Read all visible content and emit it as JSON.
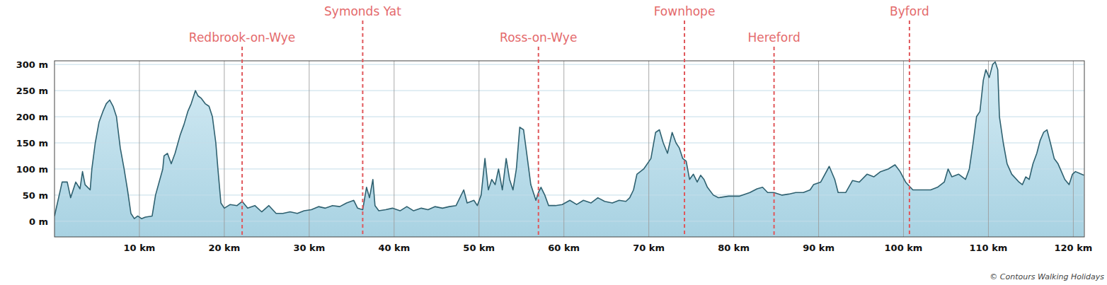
{
  "chart_data": {
    "type": "area",
    "color": "#2f6170",
    "grid": true,
    "xlim": [
      0,
      121.3
    ],
    "ylim": [
      -30,
      307
    ],
    "xticks": [
      {
        "value": 10,
        "label": "10 km"
      },
      {
        "value": 20,
        "label": "20 km"
      },
      {
        "value": 30,
        "label": "30 km"
      },
      {
        "value": 40,
        "label": "40 km"
      },
      {
        "value": 50,
        "label": "50 km"
      },
      {
        "value": 60,
        "label": "60 km"
      },
      {
        "value": 70,
        "label": "70 km"
      },
      {
        "value": 80,
        "label": "80 km"
      },
      {
        "value": 90,
        "label": "90 km"
      },
      {
        "value": 100,
        "label": "100 km"
      },
      {
        "value": 110,
        "label": "110 km"
      },
      {
        "value": 120,
        "label": "120 km"
      }
    ],
    "yticks": [
      {
        "value": 0,
        "label": "0 m"
      },
      {
        "value": 50,
        "label": "50 m"
      },
      {
        "value": 100,
        "label": "100 m"
      },
      {
        "value": 150,
        "label": "150 m"
      },
      {
        "value": 200,
        "label": "200 m"
      },
      {
        "value": 250,
        "label": "250 m"
      },
      {
        "value": 300,
        "label": "300 m"
      }
    ],
    "markers": [
      {
        "label": "Redbrook-on-Wye",
        "x": 22.1
      },
      {
        "label": "Symonds Yat",
        "x": 36.3
      },
      {
        "label": "Ross-on-Wye",
        "x": 57.0
      },
      {
        "label": "Fownhope",
        "x": 74.2
      },
      {
        "label": "Hereford",
        "x": 84.75
      },
      {
        "label": "Byford",
        "x": 100.7
      }
    ],
    "credit": "© Contours Walking Holidays",
    "x": [
      0,
      0.9,
      1.5,
      1.9,
      2.5,
      3.0,
      3.3,
      3.6,
      4.2,
      4.4,
      4.8,
      5.25,
      5.7,
      6.1,
      6.5,
      6.9,
      7.3,
      7.75,
      8.2,
      8.6,
      9.0,
      9.4,
      9.8,
      10.25,
      10.7,
      11.5,
      11.9,
      12.75,
      12.9,
      13.3,
      13.75,
      14.2,
      14.8,
      15.25,
      15.7,
      16.1,
      16.6,
      16.9,
      17.3,
      17.75,
      18.2,
      18.6,
      19.0,
      19.25,
      19.6,
      20.0,
      20.7,
      21.5,
      22.1,
      22.75,
      23.6,
      24.4,
      25.25,
      26.1,
      26.9,
      27.75,
      28.6,
      29.4,
      30.25,
      31.1,
      31.9,
      32.75,
      33.6,
      34.4,
      35.25,
      35.7,
      36.3,
      36.75,
      37.1,
      37.5,
      37.75,
      38.2,
      39.0,
      39.8,
      40.7,
      41.5,
      42.3,
      43.2,
      44.0,
      44.8,
      45.7,
      46.5,
      47.3,
      48.2,
      48.6,
      49.4,
      49.8,
      50.25,
      50.7,
      51.1,
      51.5,
      51.9,
      52.3,
      52.75,
      53.2,
      53.6,
      54.0,
      54.4,
      54.8,
      55.25,
      55.7,
      56.1,
      56.7,
      57.0,
      57.3,
      57.75,
      58.2,
      59.0,
      59.8,
      60.7,
      61.5,
      62.3,
      63.2,
      64.0,
      64.8,
      65.7,
      66.5,
      67.3,
      67.75,
      68.2,
      68.6,
      69.4,
      70.25,
      70.8,
      71.25,
      71.7,
      72.2,
      72.75,
      73.2,
      73.6,
      74.0,
      74.4,
      74.8,
      75.25,
      75.7,
      76.1,
      76.5,
      76.9,
      77.6,
      78.2,
      79.4,
      80.7,
      81.9,
      82.75,
      83.4,
      84.0,
      84.75,
      85.7,
      86.5,
      87.3,
      88.2,
      89.0,
      89.4,
      90.25,
      91.25,
      91.9,
      92.3,
      93.2,
      94.0,
      94.8,
      95.7,
      96.5,
      97.3,
      98.2,
      99.0,
      99.6,
      100.25,
      101.1,
      101.9,
      103.2,
      104.0,
      104.8,
      105.25,
      105.7,
      106.5,
      107.3,
      107.75,
      108.2,
      108.6,
      109.0,
      109.4,
      109.7,
      110.1,
      110.5,
      110.8,
      111.1,
      111.3,
      111.75,
      112.2,
      112.75,
      113.6,
      114.0,
      114.4,
      114.8,
      115.25,
      115.7,
      116.1,
      116.5,
      116.9,
      117.3,
      117.75,
      118.2,
      118.6,
      119.0,
      119.5,
      119.9,
      120.25,
      121.25
    ],
    "values": [
      10,
      75,
      75,
      45,
      75,
      62,
      95,
      70,
      60,
      100,
      150,
      190,
      210,
      225,
      232,
      220,
      200,
      140,
      100,
      60,
      15,
      5,
      10,
      5,
      8,
      10,
      50,
      100,
      125,
      130,
      110,
      130,
      165,
      185,
      210,
      225,
      250,
      240,
      235,
      225,
      220,
      200,
      150,
      100,
      35,
      25,
      32,
      30,
      38,
      25,
      30,
      18,
      30,
      15,
      15,
      18,
      15,
      20,
      22,
      28,
      25,
      30,
      28,
      35,
      40,
      25,
      22,
      65,
      45,
      80,
      30,
      20,
      22,
      25,
      20,
      28,
      20,
      25,
      22,
      28,
      25,
      28,
      30,
      60,
      35,
      40,
      30,
      50,
      120,
      60,
      80,
      70,
      100,
      60,
      120,
      80,
      60,
      100,
      180,
      175,
      120,
      70,
      40,
      55,
      65,
      50,
      30,
      30,
      32,
      40,
      32,
      40,
      35,
      45,
      38,
      35,
      40,
      38,
      45,
      60,
      90,
      100,
      120,
      170,
      175,
      150,
      130,
      170,
      150,
      140,
      120,
      115,
      80,
      90,
      75,
      88,
      80,
      65,
      50,
      45,
      48,
      48,
      55,
      62,
      65,
      55,
      55,
      50,
      52,
      55,
      55,
      60,
      70,
      75,
      105,
      80,
      55,
      55,
      78,
      75,
      90,
      85,
      95,
      100,
      108,
      95,
      75,
      60,
      60,
      60,
      65,
      75,
      100,
      85,
      90,
      80,
      100,
      150,
      200,
      210,
      270,
      290,
      275,
      300,
      305,
      290,
      200,
      150,
      110,
      90,
      75,
      70,
      85,
      80,
      110,
      130,
      155,
      170,
      175,
      150,
      120,
      110,
      95,
      80,
      70,
      90,
      95,
      88
    ]
  }
}
